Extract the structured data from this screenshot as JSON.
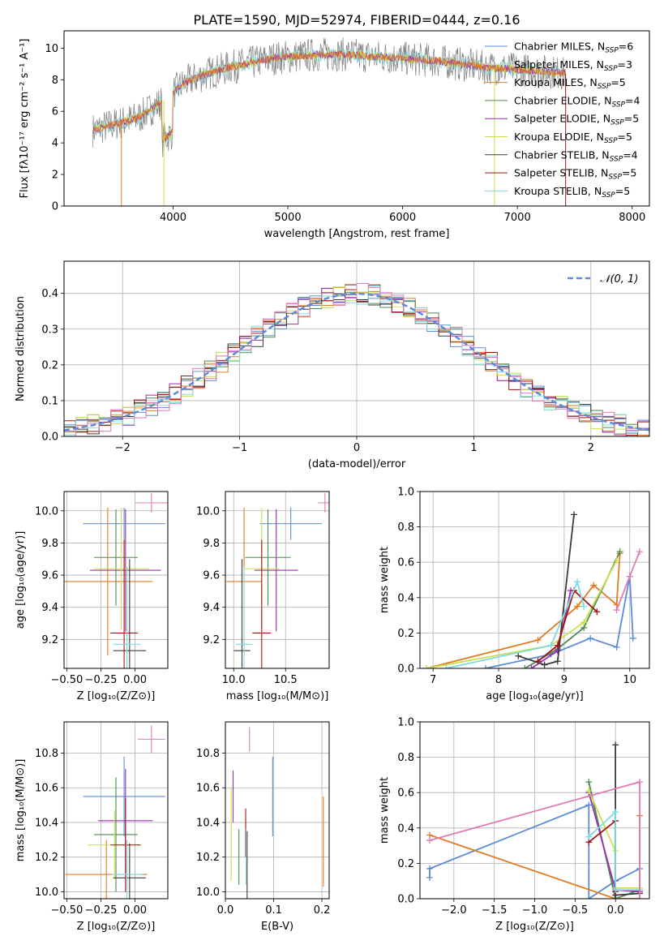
{
  "page": {
    "title": "PLATE=1590, MJD=52974, FIBERID=0444, z=0.16"
  },
  "colors": {
    "Chabrier MILES": "#5b8bd9",
    "Salpeter MILES": "#d9d9d9",
    "Kroupa MILES": "#e07b22",
    "Chabrier ELODIE": "#4f8a4f",
    "Salpeter ELODIE": "#9a2fb5",
    "Kroupa ELODIE": "#c9e04a",
    "Chabrier STELIB": "#3b3b3b",
    "Salpeter STELIB": "#a01616",
    "Kroupa STELIB": "#7fdbe0",
    "pink": "#e07ab5",
    "gray": "#808080"
  },
  "chart_data": [
    {
      "id": "spectrum",
      "type": "line",
      "title": "PLATE=1590, MJD=52974, FIBERID=0444, z=0.16",
      "xlabel": "wavelength [Angstrom, rest frame]",
      "ylabel": "Flux [fλ10⁻¹⁷ erg cm⁻² s⁻¹ A⁻¹]",
      "xlim": [
        3050,
        8150
      ],
      "ylim": [
        0,
        11.1
      ],
      "xticks": [
        "4000",
        "5000",
        "6000",
        "7000",
        "8000"
      ],
      "yticks": [
        "0",
        "2",
        "4",
        "6",
        "8",
        "10"
      ],
      "legend": [
        "Chabrier MILES, N_SSP=6",
        "Salpeter MILES, N_SSP=3",
        "Kroupa MILES, N_SSP=5",
        "Chabrier ELODIE, N_SSP=4",
        "Salpeter ELODIE, N_SSP=5",
        "Kroupa ELODIE, N_SSP=5",
        "Chabrier STELIB, N_SSP=4",
        "Salpeter STELIB, N_SSP=5",
        "Kroupa STELIB, N_SSP=5"
      ],
      "legend_placement": "right",
      "continuum": {
        "x": [
          3300,
          3500,
          3700,
          3900,
          4100,
          4300,
          4500,
          4700,
          4900,
          5100,
          5300,
          5500,
          5700,
          5900,
          6100,
          6300,
          6500,
          6700,
          6900,
          7100,
          7300,
          7400
        ],
        "y": [
          4.8,
          5.2,
          5.6,
          6.6,
          7.8,
          8.4,
          8.8,
          9.1,
          9.4,
          9.5,
          9.6,
          9.6,
          9.5,
          9.4,
          9.3,
          9.2,
          9.0,
          8.8,
          8.7,
          8.6,
          8.5,
          8.4
        ]
      }
    },
    {
      "id": "residuals",
      "type": "line",
      "xlabel": "(data-model)/error",
      "ylabel": "Normed distribution",
      "xlim": [
        -2.5,
        2.5
      ],
      "ylim": [
        0,
        0.49
      ],
      "xticks": [
        "−2",
        "−1",
        "0",
        "1",
        "2"
      ],
      "yticks": [
        "0.0",
        "0.1",
        "0.2",
        "0.3",
        "0.4"
      ],
      "legend": [
        "𝒩(0, 1)"
      ],
      "legend_placement": "top-right",
      "grid": true
    },
    {
      "id": "age_vs_z",
      "type": "scatter",
      "xlabel": "Z [log₁₀(Z/Z⊙)]",
      "ylabel": "age  [log₁₀(age/yr)]",
      "xlim": [
        -0.52,
        0.24
      ],
      "ylim": [
        9.02,
        10.12
      ],
      "xticks": [
        "−0.50",
        "−0.25",
        "0.00"
      ],
      "yticks": [
        "9.2",
        "9.4",
        "9.6",
        "9.8",
        "10.0"
      ],
      "grid": true,
      "points": [
        {
          "s": "Chabrier MILES",
          "x": -0.08,
          "xe": 0.3,
          "y": 9.92,
          "ye": 0.1
        },
        {
          "s": "Kroupa MILES",
          "x": -0.2,
          "xe": 0.33,
          "y": 9.56,
          "ye": 0.46
        },
        {
          "s": "Chabrier ELODIE",
          "x": -0.14,
          "xe": 0.16,
          "y": 9.71,
          "ye": 0.3
        },
        {
          "s": "Salpeter ELODIE",
          "x": -0.07,
          "xe": 0.26,
          "y": 9.63,
          "ye": 0.38
        },
        {
          "s": "Kroupa ELODIE",
          "x": -0.1,
          "xe": 0.2,
          "y": 9.64,
          "ye": 0.38
        },
        {
          "s": "Chabrier STELIB",
          "x": -0.04,
          "xe": 0.12,
          "y": 9.13,
          "ye": 0.57
        },
        {
          "s": "Salpeter STELIB",
          "x": -0.08,
          "xe": 0.1,
          "y": 9.24,
          "ye": 0.58
        },
        {
          "s": "Kroupa STELIB",
          "x": -0.06,
          "xe": 0.1,
          "y": 9.17,
          "ye": 0.48
        },
        {
          "s": "pink",
          "x": 0.12,
          "xe": 0.12,
          "y": 10.05,
          "ye": 0.06
        }
      ]
    },
    {
      "id": "age_vs_mass",
      "type": "scatter",
      "xlabel": "mass [log₁₀(M/M⊙)]",
      "ylabel": "",
      "xlim": [
        9.92,
        10.92
      ],
      "ylim": [
        9.02,
        10.12
      ],
      "xticks": [
        "10.0",
        "10.5"
      ],
      "yticks": [
        "9.2",
        "9.4",
        "9.6",
        "9.8",
        "10.0"
      ],
      "grid": true,
      "points": [
        {
          "s": "Chabrier MILES",
          "x": 10.55,
          "xe": 0.3,
          "y": 9.92,
          "ye": 0.1
        },
        {
          "s": "Kroupa MILES",
          "x": 10.1,
          "xe": 0.17,
          "y": 9.56,
          "ye": 0.46
        },
        {
          "s": "Chabrier ELODIE",
          "x": 10.33,
          "xe": 0.22,
          "y": 9.71,
          "ye": 0.3
        },
        {
          "s": "Salpeter ELODIE",
          "x": 10.41,
          "xe": 0.21,
          "y": 9.63,
          "ye": 0.38
        },
        {
          "s": "Kroupa ELODIE",
          "x": 10.27,
          "xe": 0.17,
          "y": 9.64,
          "ye": 0.38
        },
        {
          "s": "Chabrier STELIB",
          "x": 10.08,
          "xe": 0.08,
          "y": 9.13,
          "ye": 0.57
        },
        {
          "s": "Salpeter STELIB",
          "x": 10.27,
          "xe": 0.09,
          "y": 9.24,
          "ye": 0.58
        },
        {
          "s": "Kroupa STELIB",
          "x": 10.1,
          "xe": 0.08,
          "y": 9.17,
          "ye": 0.48
        },
        {
          "s": "pink",
          "x": 10.88,
          "xe": 0.07,
          "y": 10.05,
          "ye": 0.06
        }
      ]
    },
    {
      "id": "weight_vs_age",
      "type": "line",
      "xlabel": "age  [log₁₀(age/yr)]",
      "ylabel": "mass weight",
      "xlim": [
        6.8,
        10.3
      ],
      "ylim": [
        0,
        1.0
      ],
      "xticks": [
        "7",
        "8",
        "9",
        "10"
      ],
      "yticks": [
        "0.0",
        "0.2",
        "0.4",
        "0.6",
        "0.8",
        "1.0"
      ],
      "grid": true,
      "series": [
        {
          "s": "Chabrier MILES",
          "x": [
            7.8,
            8.8,
            9.4,
            9.8,
            10.0,
            10.05
          ],
          "y": [
            0.0,
            0.08,
            0.17,
            0.12,
            0.52,
            0.17
          ]
        },
        {
          "s": "Kroupa MILES",
          "x": [
            6.9,
            8.6,
            9.2,
            9.45,
            9.8,
            9.85
          ],
          "y": [
            0.0,
            0.16,
            0.35,
            0.47,
            0.36,
            0.65
          ]
        },
        {
          "s": "Chabrier ELODIE",
          "x": [
            8.4,
            8.9,
            9.3,
            9.85
          ],
          "y": [
            0.0,
            0.11,
            0.23,
            0.66
          ]
        },
        {
          "s": "Salpeter ELODIE",
          "x": [
            8.5,
            8.9,
            9.1
          ],
          "y": [
            0.0,
            0.1,
            0.44
          ]
        },
        {
          "s": "Kroupa ELODIE",
          "x": [
            6.9,
            8.8,
            9.3,
            9.8
          ],
          "y": [
            0.0,
            0.13,
            0.26,
            0.61
          ]
        },
        {
          "s": "Chabrier STELIB",
          "x": [
            8.3,
            8.7,
            8.9,
            9.15
          ],
          "y": [
            0.07,
            0.02,
            0.04,
            0.87
          ]
        },
        {
          "s": "Salpeter STELIB",
          "x": [
            8.6,
            8.9,
            9.15,
            9.5
          ],
          "y": [
            0.04,
            0.13,
            0.44,
            0.32
          ]
        },
        {
          "s": "Kroupa STELIB",
          "x": [
            7.2,
            8.8,
            9.2,
            9.3
          ],
          "y": [
            0.0,
            0.13,
            0.49,
            0.35
          ]
        },
        {
          "s": "pink",
          "x": [
            9.8,
            10.0,
            10.15
          ],
          "y": [
            0.33,
            0.52,
            0.66
          ]
        }
      ]
    },
    {
      "id": "mass_vs_z",
      "type": "scatter",
      "xlabel": "Z [log₁₀(Z/Z⊙)]",
      "ylabel": "mass [log₁₀(M/M⊙)]",
      "xlim": [
        -0.52,
        0.24
      ],
      "ylim": [
        9.96,
        10.98
      ],
      "xticks": [
        "−0.50",
        "−0.25",
        "0.00"
      ],
      "yticks": [
        "10.0",
        "10.2",
        "10.4",
        "10.6",
        "10.8"
      ],
      "grid": true,
      "points": [
        {
          "s": "Chabrier MILES",
          "x": -0.08,
          "xe": 0.3,
          "y": 10.55,
          "ye": 0.23
        },
        {
          "s": "Kroupa MILES",
          "x": -0.21,
          "xe": 0.3,
          "y": 10.1,
          "ye": 0.2
        },
        {
          "s": "Chabrier ELODIE",
          "x": -0.14,
          "xe": 0.16,
          "y": 10.33,
          "ye": 0.33
        },
        {
          "s": "Salpeter ELODIE",
          "x": -0.07,
          "xe": 0.2,
          "y": 10.41,
          "ye": 0.3
        },
        {
          "s": "Kroupa ELODIE",
          "x": -0.15,
          "xe": 0.2,
          "y": 10.27,
          "ye": 0.2
        },
        {
          "s": "Chabrier STELIB",
          "x": -0.04,
          "xe": 0.12,
          "y": 10.08,
          "ye": 0.2
        },
        {
          "s": "Salpeter STELIB",
          "x": -0.07,
          "xe": 0.11,
          "y": 10.27,
          "ye": 0.27
        },
        {
          "s": "Kroupa STELIB",
          "x": -0.06,
          "xe": 0.11,
          "y": 10.1,
          "ye": 0.2
        },
        {
          "s": "pink",
          "x": 0.12,
          "xe": 0.1,
          "y": 10.88,
          "ye": 0.08
        }
      ]
    },
    {
      "id": "mass_vs_ebv",
      "type": "scatter",
      "xlabel": "E(B-V)",
      "ylabel": "",
      "xlim": [
        0.0,
        0.215
      ],
      "ylim": [
        9.96,
        10.98
      ],
      "xticks": [
        "0.0",
        "0.1",
        "0.2"
      ],
      "yticks": [
        "10.0",
        "10.2",
        "10.4",
        "10.6",
        "10.8"
      ],
      "grid": true,
      "points": [
        {
          "s": "Chabrier MILES",
          "x": 0.098,
          "y": 10.55,
          "ye": 0.23
        },
        {
          "s": "Kroupa MILES",
          "x": 0.203,
          "y": 10.29,
          "ye": 0.26
        },
        {
          "s": "Chabrier ELODIE",
          "x": 0.028,
          "y": 10.2,
          "ye": 0.16
        },
        {
          "s": "Salpeter ELODIE",
          "x": 0.016,
          "y": 10.55,
          "ye": 0.15
        },
        {
          "s": "Kroupa ELODIE",
          "x": 0.012,
          "y": 10.33,
          "ye": 0.27
        },
        {
          "s": "Chabrier STELIB",
          "x": 0.045,
          "y": 10.1,
          "ye": 0.25
        },
        {
          "s": "Salpeter STELIB",
          "x": 0.042,
          "y": 10.34,
          "ye": 0.14
        },
        {
          "s": "Kroupa STELIB",
          "x": 0.043,
          "y": 10.2,
          "ye": 0.16
        },
        {
          "s": "pink",
          "x": 0.05,
          "y": 10.88,
          "ye": 0.07
        }
      ]
    },
    {
      "id": "weight_vs_z",
      "type": "line",
      "xlabel": "Z [log₁₀(Z/Z⊙)]",
      "ylabel": "mass weight",
      "xlim": [
        -2.42,
        0.42
      ],
      "ylim": [
        0,
        1.0
      ],
      "xticks": [
        "−2.0",
        "−1.5",
        "−1.0",
        "−0.5",
        "0.0"
      ],
      "yticks": [
        "0.0",
        "0.2",
        "0.4",
        "0.6",
        "0.8",
        "1.0"
      ],
      "grid": true,
      "series": [
        {
          "s": "Chabrier MILES",
          "x": [
            -2.3,
            -2.3,
            -0.33,
            -0.33,
            0.0,
            0.3
          ],
          "y": [
            0.12,
            0.17,
            0.53,
            0.0,
            0.1,
            0.17
          ]
        },
        {
          "s": "Kroupa MILES",
          "x": [
            -2.3,
            0.0,
            0.3,
            0.3
          ],
          "y": [
            0.36,
            0.0,
            0.0,
            0.47
          ]
        },
        {
          "s": "Chabrier ELODIE",
          "x": [
            -0.33,
            0.0,
            0.3
          ],
          "y": [
            0.66,
            0.0,
            0.05
          ]
        },
        {
          "s": "Salpeter ELODIE",
          "x": [
            -0.33,
            0.0,
            0.3
          ],
          "y": [
            0.6,
            0.05,
            0.04
          ]
        },
        {
          "s": "Kroupa ELODIE",
          "x": [
            -0.33,
            0.0,
            0.0,
            0.3
          ],
          "y": [
            0.61,
            0.27,
            0.06,
            0.06
          ]
        },
        {
          "s": "Chabrier STELIB",
          "x": [
            0.0,
            0.0,
            0.3
          ],
          "y": [
            0.87,
            0.02,
            0.03
          ]
        },
        {
          "s": "Salpeter STELIB",
          "x": [
            -0.33,
            0.0,
            0.0
          ],
          "y": [
            0.32,
            0.44,
            0.04
          ]
        },
        {
          "s": "Kroupa STELIB",
          "x": [
            -0.33,
            0.0,
            0.0,
            0.3
          ],
          "y": [
            0.35,
            0.49,
            0.05,
            0.05
          ]
        },
        {
          "s": "pink",
          "x": [
            -2.3,
            0.3,
            0.3
          ],
          "y": [
            0.33,
            0.66,
            0.0
          ]
        }
      ]
    }
  ]
}
